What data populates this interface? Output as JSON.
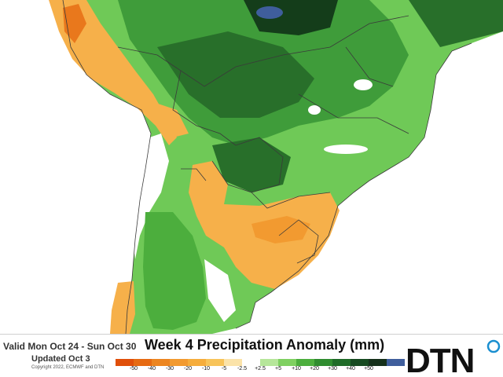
{
  "header": {
    "valid": "Valid Mon Oct 24 - Sun Oct 30",
    "updated": "Updated Oct 3",
    "copyright": "Copyright 2022, ECMWF and DTN",
    "title": "Week 4 Precipitation Anomaly (mm)"
  },
  "legend": {
    "ticks": [
      "-50",
      "-40",
      "-30",
      "-20",
      "-10",
      "-5",
      "-2.5",
      "+2.5",
      "+5",
      "+10",
      "+20",
      "+30",
      "+40",
      "+50"
    ],
    "colors": [
      "#e04f0a",
      "#e66a12",
      "#ec8520",
      "#f29a30",
      "#f6ad3c",
      "#f8c45a",
      "#fbe3a9",
      "#ffffff",
      "#b6e69a",
      "#7fd061",
      "#4cae3d",
      "#2f8c2f",
      "#1f6b28",
      "#164a20",
      "#15301a",
      "#3f5e9c"
    ]
  },
  "logo": {
    "text": "DTN",
    "accent": "#1a8fd0"
  },
  "map_colors": {
    "ocean": "#ffffff",
    "dry_light": "#f6b04a",
    "dry_strong": "#e9781c",
    "wet_light": "#6fc957",
    "wet_mid": "#3f9c3a",
    "wet_dark": "#286f2a",
    "wet_darkest": "#143d1a",
    "water": "#3f5e9c",
    "border": "#3a3a3a"
  }
}
